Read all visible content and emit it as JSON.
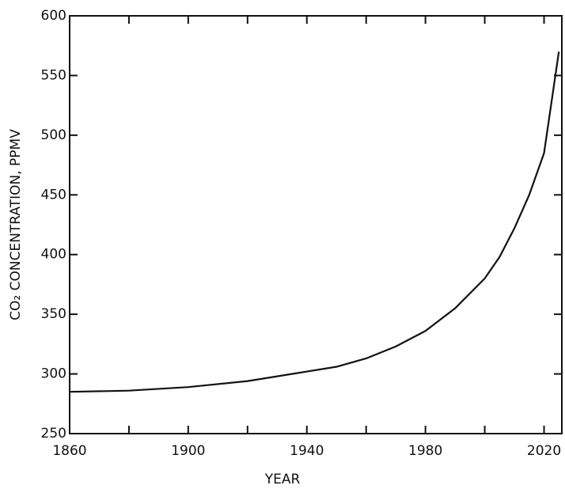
{
  "chart_data": {
    "type": "line",
    "xlabel": "YEAR",
    "ylabel": "CO₂ CONCENTRATION, PPMV",
    "x": [
      1860,
      1880,
      1900,
      1920,
      1940,
      1950,
      1960,
      1970,
      1980,
      1990,
      2000,
      2005,
      2010,
      2015,
      2020,
      2025
    ],
    "series": [
      {
        "color": "#111111",
        "values": [
          285,
          286,
          289,
          294,
          302,
          306,
          313,
          323,
          336,
          355,
          380,
          398,
          422,
          450,
          485,
          570
        ]
      }
    ],
    "xlim": [
      1860,
      2026
    ],
    "xticks": [
      1860,
      1900,
      1940,
      1980,
      2020
    ],
    "xminorticks": [
      1880,
      1920,
      1960,
      2000
    ],
    "ylim": [
      250,
      600
    ],
    "yticks": [
      250,
      300,
      350,
      400,
      450,
      500,
      550,
      600
    ]
  }
}
